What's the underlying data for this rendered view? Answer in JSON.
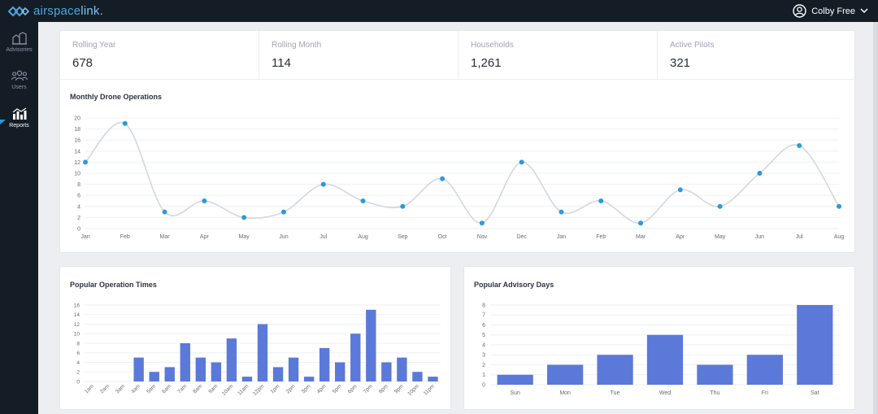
{
  "header": {
    "brand_part1": "airspace",
    "brand_part2": "link",
    "brand_dot": ".",
    "user_name": "Colby Free",
    "logo_icon": "chain-link-logo",
    "user_icon": "user-circle-icon",
    "dropdown_icon": "chevron-down-icon"
  },
  "sidebar": {
    "items": [
      {
        "label": "Advisories",
        "icon": "buildings-icon",
        "active": false
      },
      {
        "label": "Users",
        "icon": "users-icon",
        "active": false
      },
      {
        "label": "Reports",
        "icon": "bar-chart-icon",
        "active": true
      }
    ]
  },
  "stats": [
    {
      "label": "Rolling Year",
      "value": "678"
    },
    {
      "label": "Rolling Month",
      "value": "114"
    },
    {
      "label": "Households",
      "value": "1,261"
    },
    {
      "label": "Active Pilots",
      "value": "321"
    }
  ],
  "colors": {
    "accent": "#2c9ad8",
    "bar": "#5b79d8",
    "sidebar_bg": "#141c26",
    "line": "#d4d7dc"
  },
  "chart_data": [
    {
      "type": "line",
      "title": "Monthly Drone Operations",
      "categories": [
        "Jan",
        "Feb",
        "Mar",
        "Apr",
        "May",
        "Jun",
        "Jul",
        "Aug",
        "Sep",
        "Oct",
        "Nov",
        "Dec",
        "Jan",
        "Feb",
        "Mar",
        "Apr",
        "May",
        "Jun",
        "Jul",
        "Aug"
      ],
      "values": [
        12,
        19,
        3,
        5,
        2,
        3,
        8,
        5,
        4,
        9,
        1,
        12,
        3,
        5,
        1,
        7,
        4,
        10,
        15,
        4
      ],
      "ylim": [
        0,
        20
      ],
      "yticks": [
        0,
        2,
        4,
        6,
        8,
        10,
        12,
        14,
        16,
        18,
        20
      ],
      "grid": true
    },
    {
      "type": "bar",
      "title": "Popular Operation Times",
      "categories": [
        "1am",
        "2am",
        "3am",
        "4am",
        "5am",
        "6am",
        "7am",
        "8am",
        "9am",
        "10am",
        "11am",
        "12pm",
        "1pm",
        "2pm",
        "3pm",
        "4pm",
        "5pm",
        "6pm",
        "7pm",
        "8pm",
        "9pm",
        "10pm",
        "11pm"
      ],
      "values": [
        0,
        0,
        0,
        5,
        2,
        3,
        8,
        5,
        4,
        9,
        1,
        12,
        3,
        5,
        1,
        7,
        4,
        10,
        15,
        4,
        5,
        2,
        1
      ],
      "ylim": [
        0,
        16
      ],
      "yticks": [
        0,
        2,
        4,
        6,
        8,
        10,
        12,
        14,
        16
      ],
      "grid": true
    },
    {
      "type": "bar",
      "title": "Popular Advisory Days",
      "categories": [
        "Sun",
        "Mon",
        "Tue",
        "Wed",
        "Thu",
        "Fri",
        "Sat"
      ],
      "values": [
        1,
        2,
        3,
        5,
        2,
        3,
        8
      ],
      "ylim": [
        0,
        8
      ],
      "yticks": [
        0,
        1,
        2,
        3,
        4,
        5,
        6,
        7,
        8
      ],
      "grid": true
    }
  ]
}
